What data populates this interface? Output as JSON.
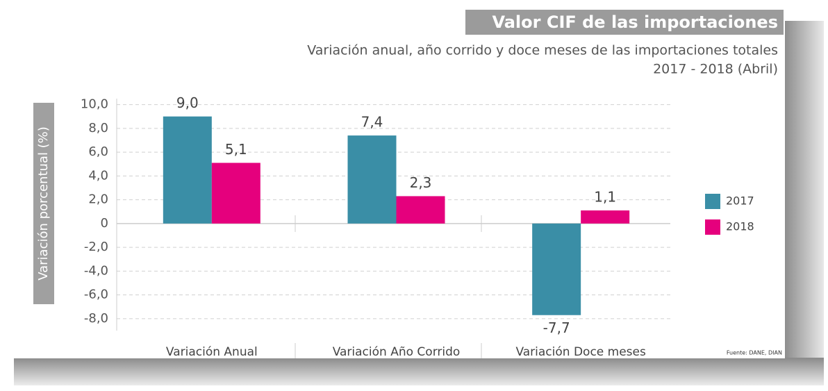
{
  "chart_data": {
    "type": "bar",
    "title": "Valor CIF de las importaciones",
    "subtitle": [
      "Variación anual, año corrido y doce meses de las importaciones totales",
      "2017 - 2018 (Abril)"
    ],
    "y_label": "Variación porcentual (%)",
    "source": "Fuente: DANE, DIAN",
    "categories": [
      "Variación Anual",
      "Variación Año Corrido",
      "Variación Doce meses"
    ],
    "series": [
      {
        "name": "2017",
        "color": "#3a8ea6",
        "values": [
          9.0,
          7.4,
          -7.7
        ],
        "value_labels": [
          "9,0",
          "7,4",
          "-7,7"
        ]
      },
      {
        "name": "2018",
        "color": "#e5007d",
        "values": [
          5.1,
          2.3,
          1.1
        ],
        "value_labels": [
          "5,1",
          "2,3",
          "1,1"
        ]
      }
    ],
    "ylim": [
      -9,
      10.5
    ],
    "yticks": [
      {
        "value": 10,
        "label": "10,0"
      },
      {
        "value": 8,
        "label": "8,0"
      },
      {
        "value": 6,
        "label": "6,0"
      },
      {
        "value": 4,
        "label": "4,0"
      },
      {
        "value": 2,
        "label": "2,0"
      },
      0,
      {
        "value": -2,
        "label": "-2,0"
      },
      {
        "value": -4,
        "label": "-4,0"
      },
      {
        "value": -6,
        "label": "-6,0"
      },
      {
        "value": -8,
        "label": "-8,0"
      }
    ],
    "grid": true,
    "legend": "right"
  }
}
